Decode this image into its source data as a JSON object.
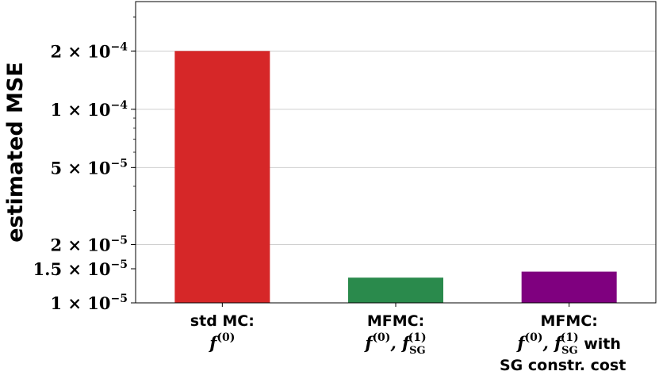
{
  "chart_data": {
    "type": "bar",
    "ylabel": "estimated MSE",
    "yscale": "log",
    "ylim": [
      1e-05,
      0.00036
    ],
    "grid": "y-major",
    "yticks": [
      {
        "value": 1e-05,
        "label_mantissa": "1",
        "label_exp": "−5"
      },
      {
        "value": 1.5e-05,
        "label_mantissa": "1.5",
        "label_exp": "−5"
      },
      {
        "value": 2e-05,
        "label_mantissa": "2",
        "label_exp": "−5"
      },
      {
        "value": 5e-05,
        "label_mantissa": "5",
        "label_exp": "−5"
      },
      {
        "value": 0.0001,
        "label_mantissa": "1",
        "label_exp": "−4"
      },
      {
        "value": 0.0002,
        "label_mantissa": "2",
        "label_exp": "−4"
      }
    ],
    "categories": [
      "std MC: f(0)",
      "MFMC: f(0), f(1)SG",
      "MFMC: f(0), f(1)SG with SG constr. cost"
    ],
    "category_parts": [
      {
        "line1": "std MC:",
        "math": [
          {
            "base": "f",
            "sup": "(0)"
          }
        ],
        "suffix": "",
        "line3": ""
      },
      {
        "line1": "MFMC:",
        "math": [
          {
            "base": "f",
            "sup": "(0)"
          },
          {
            "base": "f",
            "sup": "(1)",
            "sub": "SG"
          }
        ],
        "suffix": "",
        "line3": ""
      },
      {
        "line1": "MFMC:",
        "math": [
          {
            "base": "f",
            "sup": "(0)"
          },
          {
            "base": "f",
            "sup": "(1)",
            "sub": "SG"
          }
        ],
        "suffix": "with",
        "line3": "SG constr. cost"
      }
    ],
    "values": [
      0.0002,
      1.35e-05,
      1.45e-05
    ],
    "colors": [
      "#d62728",
      "#2a8a4c",
      "#7f007f"
    ]
  }
}
